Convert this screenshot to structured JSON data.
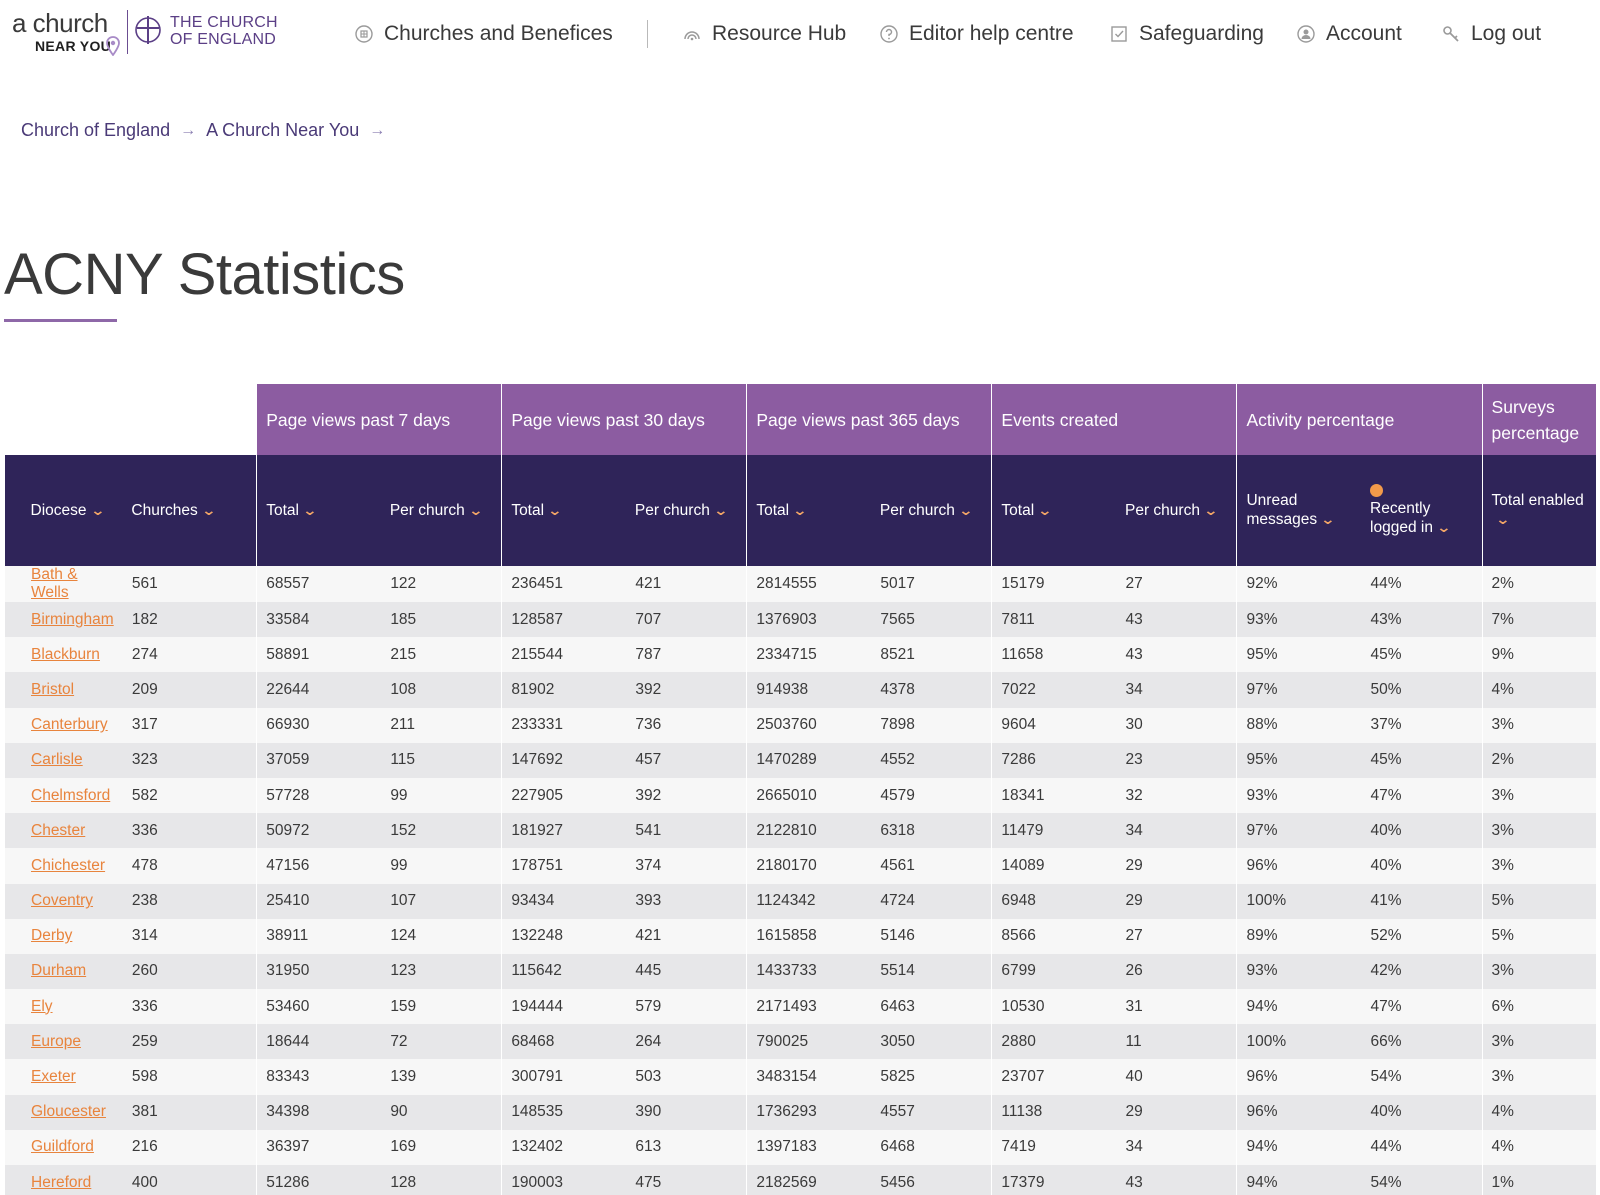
{
  "brand": {
    "acny_line1": "a church",
    "acny_line2": "NEAR YOU",
    "coe_line1": "THE CHURCH",
    "coe_line2": "OF ENGLAND"
  },
  "nav": [
    {
      "label": "Churches and Benefices",
      "icon": "church-icon"
    },
    {
      "label": "Resource Hub",
      "icon": "rainbow-icon"
    },
    {
      "label": "Editor help centre",
      "icon": "help-icon"
    },
    {
      "label": "Safeguarding",
      "icon": "checkbox-icon"
    },
    {
      "label": "Account",
      "icon": "user-icon"
    },
    {
      "label": "Log out",
      "icon": "key-icon"
    }
  ],
  "breadcrumb": [
    {
      "label": "Church of England"
    },
    {
      "label": "A Church Near You"
    }
  ],
  "page": {
    "title": "ACNY Statistics"
  },
  "colors": {
    "group_header": "#8c5ca1",
    "column_header": "#2f2459",
    "link": "#e8843d",
    "chevron": "#f2a566",
    "title_rule": "#8e68a8"
  },
  "table": {
    "groups": [
      "Page views past 7 days",
      "Page views past 30 days",
      "Page views past 365 days",
      "Events created",
      "Activity percentage",
      "Surveys percentage"
    ],
    "columns": [
      "Diocese",
      "Churches",
      "Total",
      "Per church",
      "Total",
      "Per church",
      "Total",
      "Per church",
      "Total",
      "Per church",
      "Unread messages",
      "Recently logged in",
      "Total enabled"
    ],
    "rows": [
      [
        "Bath & Wells",
        "561",
        "68557",
        "122",
        "236451",
        "421",
        "2814555",
        "5017",
        "15179",
        "27",
        "92%",
        "44%",
        "2%"
      ],
      [
        "Birmingham",
        "182",
        "33584",
        "185",
        "128587",
        "707",
        "1376903",
        "7565",
        "7811",
        "43",
        "93%",
        "43%",
        "7%"
      ],
      [
        "Blackburn",
        "274",
        "58891",
        "215",
        "215544",
        "787",
        "2334715",
        "8521",
        "11658",
        "43",
        "95%",
        "45%",
        "9%"
      ],
      [
        "Bristol",
        "209",
        "22644",
        "108",
        "81902",
        "392",
        "914938",
        "4378",
        "7022",
        "34",
        "97%",
        "50%",
        "4%"
      ],
      [
        "Canterbury",
        "317",
        "66930",
        "211",
        "233331",
        "736",
        "2503760",
        "7898",
        "9604",
        "30",
        "88%",
        "37%",
        "3%"
      ],
      [
        "Carlisle",
        "323",
        "37059",
        "115",
        "147692",
        "457",
        "1470289",
        "4552",
        "7286",
        "23",
        "95%",
        "45%",
        "2%"
      ],
      [
        "Chelmsford",
        "582",
        "57728",
        "99",
        "227905",
        "392",
        "2665010",
        "4579",
        "18341",
        "32",
        "93%",
        "47%",
        "3%"
      ],
      [
        "Chester",
        "336",
        "50972",
        "152",
        "181927",
        "541",
        "2122810",
        "6318",
        "11479",
        "34",
        "97%",
        "40%",
        "3%"
      ],
      [
        "Chichester",
        "478",
        "47156",
        "99",
        "178751",
        "374",
        "2180170",
        "4561",
        "14089",
        "29",
        "96%",
        "40%",
        "3%"
      ],
      [
        "Coventry",
        "238",
        "25410",
        "107",
        "93434",
        "393",
        "1124342",
        "4724",
        "6948",
        "29",
        "100%",
        "41%",
        "5%"
      ],
      [
        "Derby",
        "314",
        "38911",
        "124",
        "132248",
        "421",
        "1615858",
        "5146",
        "8566",
        "27",
        "89%",
        "52%",
        "5%"
      ],
      [
        "Durham",
        "260",
        "31950",
        "123",
        "115642",
        "445",
        "1433733",
        "5514",
        "6799",
        "26",
        "93%",
        "42%",
        "3%"
      ],
      [
        "Ely",
        "336",
        "53460",
        "159",
        "194444",
        "579",
        "2171493",
        "6463",
        "10530",
        "31",
        "94%",
        "47%",
        "6%"
      ],
      [
        "Europe",
        "259",
        "18644",
        "72",
        "68468",
        "264",
        "790025",
        "3050",
        "2880",
        "11",
        "100%",
        "66%",
        "3%"
      ],
      [
        "Exeter",
        "598",
        "83343",
        "139",
        "300791",
        "503",
        "3483154",
        "5825",
        "23707",
        "40",
        "96%",
        "54%",
        "3%"
      ],
      [
        "Gloucester",
        "381",
        "34398",
        "90",
        "148535",
        "390",
        "1736293",
        "4557",
        "11138",
        "29",
        "96%",
        "40%",
        "4%"
      ],
      [
        "Guildford",
        "216",
        "36397",
        "169",
        "132402",
        "613",
        "1397183",
        "6468",
        "7419",
        "34",
        "94%",
        "44%",
        "4%"
      ],
      [
        "Hereford",
        "400",
        "51286",
        "128",
        "190003",
        "475",
        "2182569",
        "5456",
        "17379",
        "43",
        "94%",
        "54%",
        "1%"
      ]
    ]
  }
}
